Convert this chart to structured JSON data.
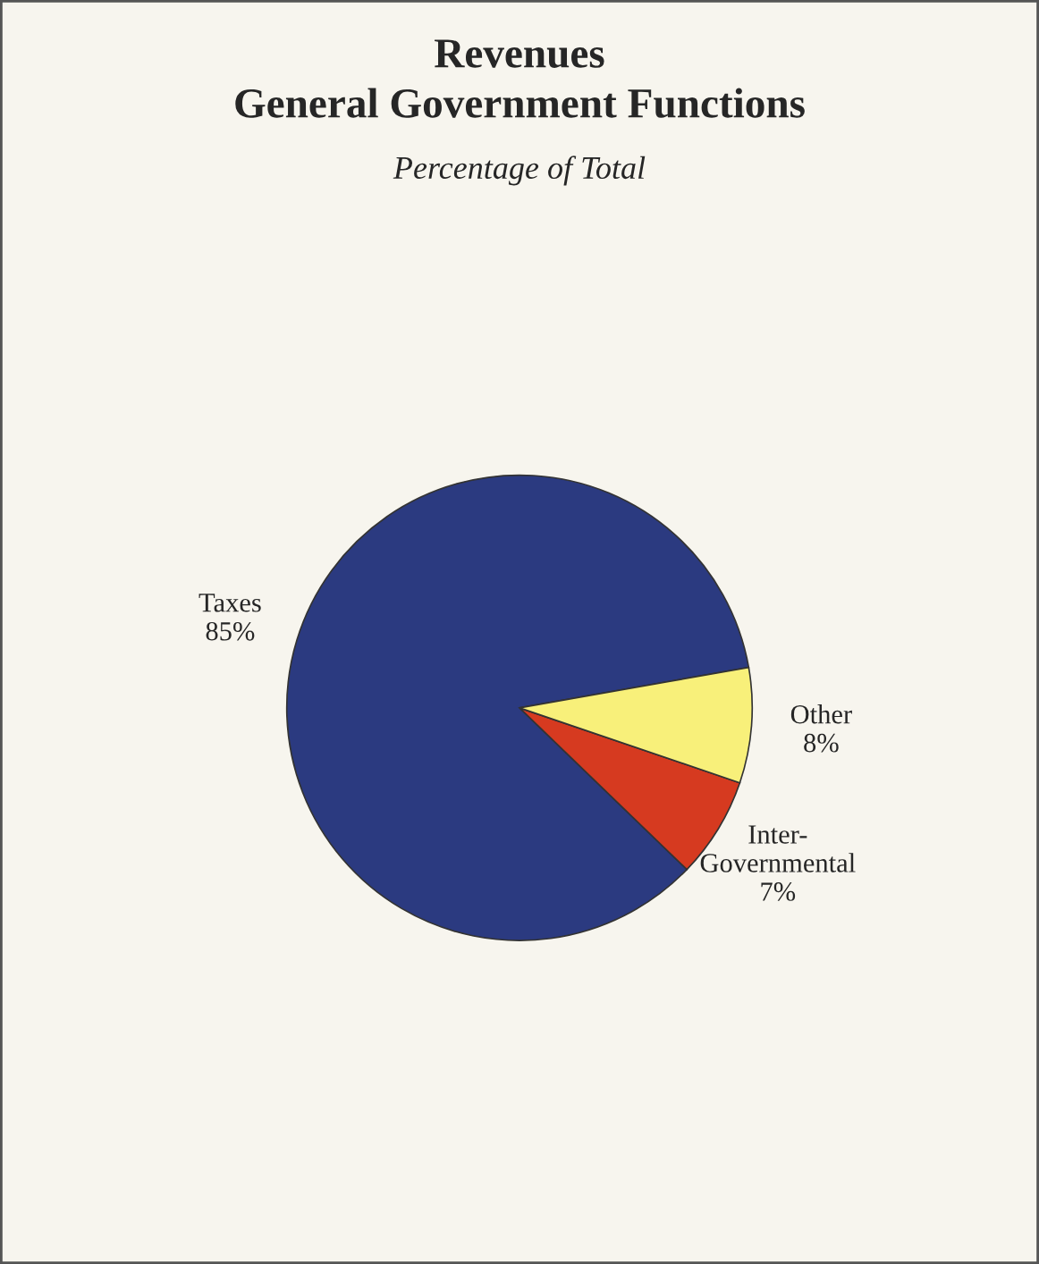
{
  "chart_data": {
    "type": "pie",
    "title": "Revenues\nGeneral Government Functions",
    "subtitle": "Percentage of Total",
    "categories": [
      "Taxes",
      "Inter-\nGovernmental",
      "Other"
    ],
    "values": [
      85,
      7,
      8
    ],
    "value_labels": [
      "85%",
      "7%",
      "8%"
    ],
    "colors": [
      "#2b3a80",
      "#d63a20",
      "#f8f07a"
    ]
  }
}
